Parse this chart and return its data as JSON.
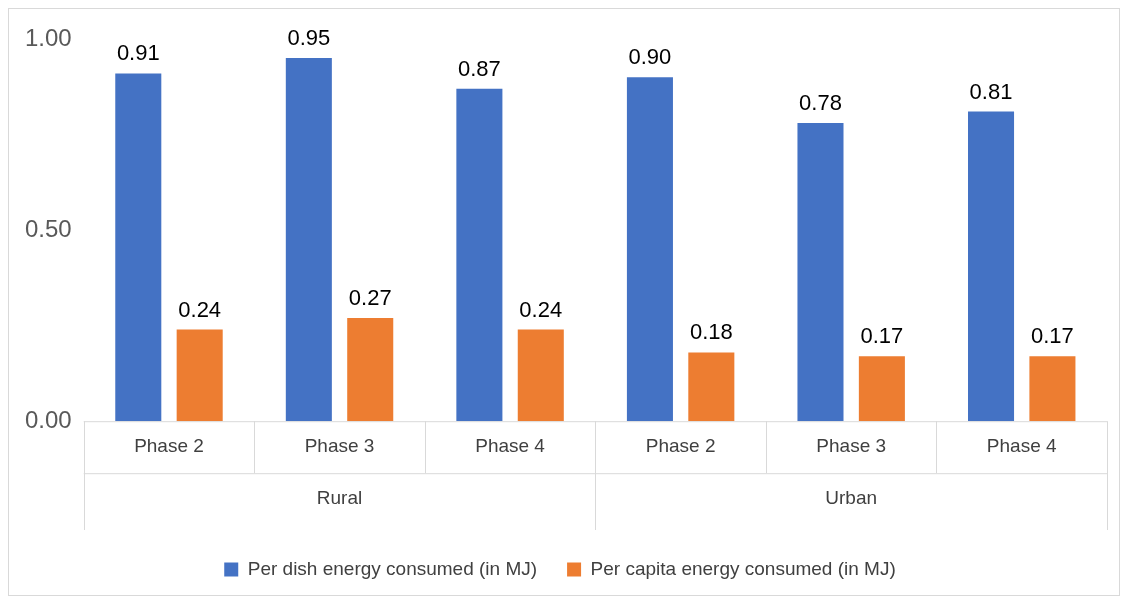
{
  "chart_data": {
    "type": "bar",
    "categories": [
      "Phase 2",
      "Phase 3",
      "Phase 4",
      "Phase 2",
      "Phase 3",
      "Phase 4"
    ],
    "series": [
      {
        "name": "Per dish energy consumed (in MJ)",
        "color": "#4472c4",
        "values": [
          0.91,
          0.95,
          0.87,
          0.9,
          0.78,
          0.81
        ],
        "value_labels": [
          "0.91",
          "0.95",
          "0.87",
          "0.90",
          "0.78",
          "0.81"
        ]
      },
      {
        "name": "Per capita energy consumed (in MJ)",
        "color": "#ed7d31",
        "values": [
          0.24,
          0.27,
          0.24,
          0.18,
          0.17,
          0.17
        ],
        "value_labels": [
          "0.24",
          "0.27",
          "0.24",
          "0.18",
          "0.17",
          "0.17"
        ]
      }
    ],
    "annotations": [
      "Rural",
      "Urban"
    ],
    "ylim": [
      0,
      1
    ],
    "yticks": [
      {
        "value": 0,
        "label": "0.00"
      },
      {
        "value": 0.5,
        "label": "0.50"
      },
      {
        "value": 1,
        "label": "1.00"
      }
    ],
    "grid": false,
    "legend": "bottom"
  }
}
